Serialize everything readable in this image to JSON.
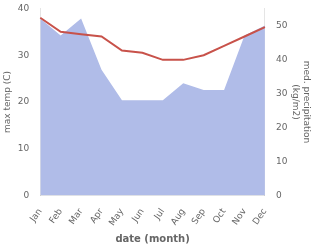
{
  "chart_data": {
    "type": "line",
    "categories": [
      "Jan",
      "Feb",
      "Mar",
      "Apr",
      "May",
      "Jun",
      "Jul",
      "Aug",
      "Sep",
      "Oct",
      "Nov",
      "Dec"
    ],
    "xlabel": "date (month)",
    "ylabel": "max temp (C)",
    "y2label": "med. precipitation\n(kg/m2)",
    "series": [
      {
        "type": "area",
        "axis": "y2",
        "color": "#b0bce8",
        "values": [
          52,
          47,
          52,
          37,
          28,
          28,
          28,
          33,
          31,
          31,
          47,
          50
        ]
      },
      {
        "type": "line",
        "color": "#c8524a",
        "values": [
          38,
          35,
          34.5,
          34,
          31,
          30.5,
          29,
          29,
          30,
          32,
          34,
          36
        ]
      }
    ],
    "ylim": [
      0,
      40
    ],
    "yticks": [
      0,
      10,
      20,
      30,
      40
    ],
    "y2lim": [
      0,
      55
    ],
    "y2ticks": [
      0,
      10,
      20,
      30,
      40,
      50
    ],
    "grid": false
  }
}
